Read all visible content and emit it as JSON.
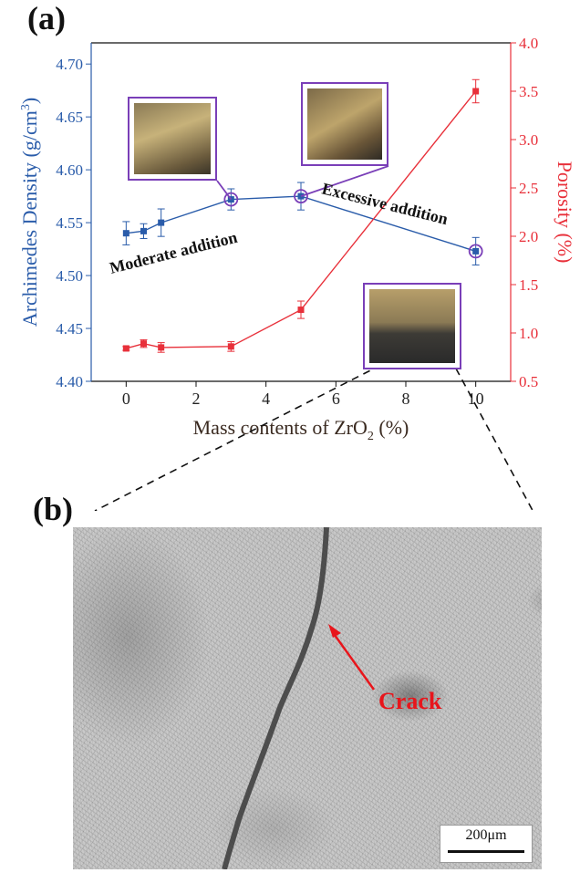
{
  "panels": {
    "a_label": "(a)",
    "b_label": "(b)"
  },
  "chart_data": {
    "type": "line",
    "xlabel_main": "Mass contents of ZrO",
    "xlabel_sub": "2",
    "xlabel_tail": " (%)",
    "ylabel_left": "Archimedes Density (g/cm",
    "ylabel_left_sup": "3",
    "ylabel_left_tail": ")",
    "ylabel_right": "Porosity (%)",
    "xlim": [
      -1,
      11
    ],
    "ylim_left": [
      4.4,
      4.72
    ],
    "ylim_right": [
      0.5,
      4.0
    ],
    "x_ticks": [
      "0",
      "2",
      "4",
      "6",
      "8",
      "10"
    ],
    "y_left_ticks": [
      "4.40",
      "4.45",
      "4.50",
      "4.55",
      "4.60",
      "4.65",
      "4.70"
    ],
    "y_right_ticks": [
      "0.5",
      "1.0",
      "1.5",
      "2.0",
      "2.5",
      "3.0",
      "3.5",
      "4.0"
    ],
    "series": [
      {
        "axis": "left",
        "x": [
          0,
          0.5,
          1,
          3,
          5,
          10
        ],
        "values": [
          4.54,
          4.542,
          4.55,
          4.572,
          4.575,
          4.523
        ],
        "errors": [
          0.011,
          0.007,
          0.013,
          0.01,
          0.013,
          0.013
        ],
        "color": "#2a5caa"
      },
      {
        "axis": "right",
        "x": [
          0,
          0.5,
          1,
          3,
          5,
          10
        ],
        "values": [
          0.84,
          0.89,
          0.85,
          0.86,
          1.24,
          3.5
        ],
        "errors": [
          0.02,
          0.04,
          0.05,
          0.05,
          0.09,
          0.12
        ],
        "color": "#e8303a"
      }
    ],
    "annotations": {
      "moderate": "Moderate addition",
      "excessive": "Excessive addition",
      "crack": "Crack",
      "scale_bar": "200μm"
    },
    "colors": {
      "left_axis": "#2a5caa",
      "right_axis": "#e8303a",
      "frame": "#7a3fb8"
    }
  }
}
